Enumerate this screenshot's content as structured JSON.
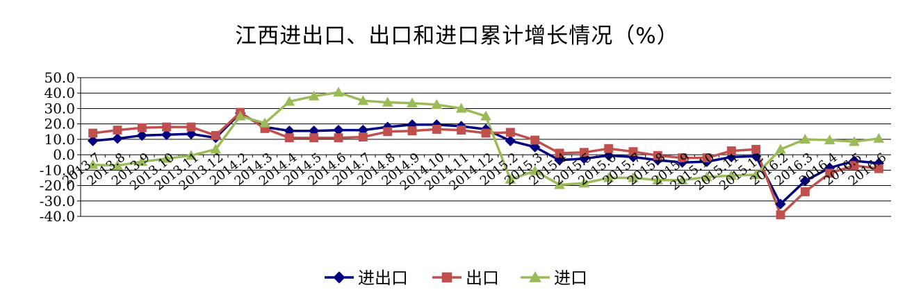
{
  "chart_data": {
    "type": "line",
    "title": "江西进出口、出口和进口累计增长情况（%）",
    "xlabel": "",
    "ylabel": "",
    "ylim": [
      -40,
      50
    ],
    "y_ticks": [
      "50.0",
      "40.0",
      "30.0",
      "20.0",
      "10.0",
      "0.0",
      "-10.0",
      "-20.0",
      "-30.0",
      "-40.0"
    ],
    "grid": true,
    "legend_position": "bottom",
    "categories": [
      "2013.7",
      "2013.8",
      "2013.9",
      "2013.10",
      "2013.11",
      "2013.12",
      "2014.2",
      "2014.3",
      "2014.4",
      "2014.5",
      "2014.6",
      "2014.7",
      "2014.8",
      "2014.9",
      "2014.10",
      "2014.11",
      "2014.12",
      "2015.2",
      "2015.3",
      "2015.4",
      "2015.5",
      "2015.6",
      "2015.7",
      "2015.8",
      "2015.9",
      "2015.10",
      "2015.11",
      "2015.12",
      "2016.2",
      "2016.3",
      "2016.4",
      "2016.5",
      "2016.6"
    ],
    "series": [
      {
        "name": "进出口",
        "color": "#000080",
        "marker": "diamond",
        "values": [
          9,
          10.5,
          12.5,
          13,
          13.5,
          11,
          27,
          18,
          15.5,
          15.5,
          16,
          16,
          18,
          19.5,
          19.5,
          18.5,
          16.5,
          9,
          5,
          -3.5,
          -2.5,
          -0.5,
          -1.5,
          -3.5,
          -5,
          -4.5,
          -1.5,
          -1,
          -32,
          -17,
          -8.5,
          -4,
          -5.5
        ]
      },
      {
        "name": "出口",
        "color": "#C0504D",
        "marker": "square",
        "values": [
          14,
          16,
          17.5,
          18,
          18,
          12.5,
          27.5,
          17,
          11,
          11,
          11,
          11.5,
          15,
          15.5,
          16.5,
          16,
          14,
          14.5,
          9.5,
          1,
          1.5,
          4,
          2,
          -0.5,
          -2,
          -2,
          2.5,
          3.5,
          -39,
          -24,
          -12,
          -7,
          -9
        ]
      },
      {
        "name": "进口",
        "color": "#9BBB59",
        "marker": "triangle",
        "values": [
          -6.5,
          -7,
          -4.5,
          -2.5,
          -0.5,
          3.5,
          25,
          20.5,
          34.5,
          38,
          40.5,
          35,
          34,
          33.5,
          32.5,
          30,
          25,
          -16,
          -10.5,
          -19.5,
          -18.5,
          -15,
          -15,
          -16.5,
          -16.5,
          -14.5,
          -13.5,
          -13,
          3.5,
          10,
          9.5,
          8.5,
          10.5
        ]
      }
    ]
  }
}
